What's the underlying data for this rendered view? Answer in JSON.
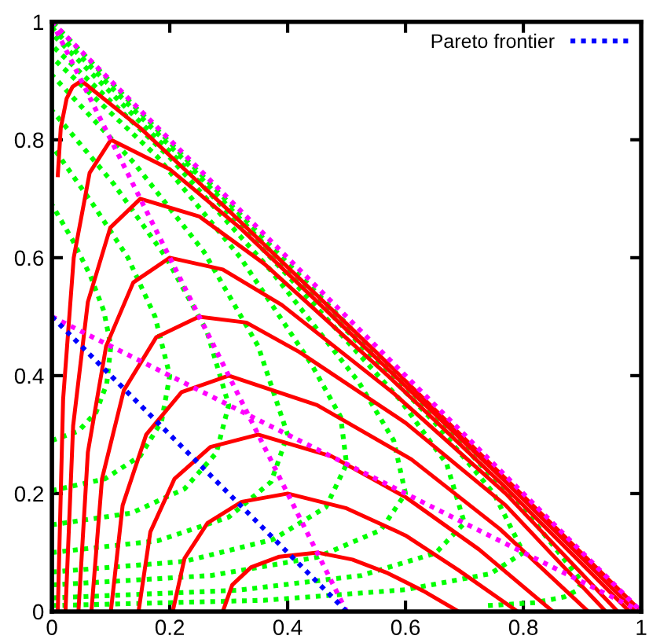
{
  "chart_data": {
    "type": "line",
    "xlim": [
      0,
      1
    ],
    "ylim": [
      0,
      1
    ],
    "xticks": [
      0,
      0.2,
      0.4,
      0.6,
      0.8,
      1
    ],
    "yticks": [
      0,
      0.2,
      0.4,
      0.6,
      0.8,
      1
    ],
    "grid": false,
    "legend": "top right",
    "marker": "none",
    "series": [
      {
        "color": "#00ff00",
        "line_style": "dotted",
        "x": [
          0.74,
          0.82,
          0.87,
          0.89,
          0.9,
          0.82,
          0.68,
          0.44,
          0.225,
          0
        ],
        "values": [
          0.01,
          0.015,
          0.025,
          0.035,
          0.05,
          0.15,
          0.3,
          0.55,
          0.77,
          1.0
        ]
      },
      {
        "color": "#00ff00",
        "line_style": "dotted",
        "x": [
          0,
          0.36,
          0.6,
          0.744,
          0.8,
          0.75,
          0.65,
          0.43,
          0.22,
          0
        ],
        "values": [
          0.01,
          0.019,
          0.037,
          0.064,
          0.1,
          0.2,
          0.32,
          0.55,
          0.77,
          0.99
        ]
      },
      {
        "color": "#00ff00",
        "line_style": "dotted",
        "x": [
          0,
          0.315,
          0.525,
          0.651,
          0.7,
          0.67,
          0.59,
          0.4,
          0.21,
          0
        ],
        "values": [
          0.023,
          0.036,
          0.061,
          0.099,
          0.15,
          0.25,
          0.36,
          0.57,
          0.77,
          0.98
        ]
      },
      {
        "color": "#00ff00",
        "line_style": "dotted",
        "x": [
          0,
          0.27,
          0.45,
          0.558,
          0.6,
          0.58,
          0.52,
          0.37,
          0.2,
          0
        ],
        "values": [
          0.045,
          0.061,
          0.092,
          0.138,
          0.2,
          0.29,
          0.39,
          0.58,
          0.77,
          0.96
        ]
      },
      {
        "color": "#00ff00",
        "line_style": "dotted",
        "x": [
          0,
          0.225,
          0.375,
          0.465,
          0.5,
          0.49,
          0.44,
          0.32,
          0.18,
          0
        ],
        "values": [
          0.067,
          0.085,
          0.122,
          0.177,
          0.25,
          0.33,
          0.42,
          0.6,
          0.77,
          0.94
        ]
      },
      {
        "color": "#00ff00",
        "line_style": "dotted",
        "x": [
          0,
          0.18,
          0.3,
          0.372,
          0.4,
          0.35,
          0.258,
          0.14,
          0
        ],
        "values": [
          0.1,
          0.12,
          0.16,
          0.22,
          0.3,
          0.45,
          0.61,
          0.76,
          0.91
        ]
      },
      {
        "color": "#00ff00",
        "line_style": "dotted",
        "x": [
          0,
          0.135,
          0.225,
          0.279,
          0.3,
          0.263,
          0.194,
          0.105,
          0
        ],
        "values": [
          0.147,
          0.167,
          0.208,
          0.269,
          0.35,
          0.475,
          0.6,
          0.725,
          0.85
        ]
      },
      {
        "color": "#00ff00",
        "line_style": "dotted",
        "x": [
          0,
          0.09,
          0.15,
          0.186,
          0.2,
          0.175,
          0.129,
          0.07,
          0
        ],
        "values": [
          0.205,
          0.225,
          0.264,
          0.322,
          0.4,
          0.5,
          0.6,
          0.69,
          0.79
        ]
      },
      {
        "color": "#00ff00",
        "line_style": "dotted",
        "x": [
          0,
          0.045,
          0.075,
          0.093,
          0.1,
          0.088,
          0.065,
          0.035,
          0
        ],
        "values": [
          0.29,
          0.306,
          0.338,
          0.386,
          0.45,
          0.51,
          0.57,
          0.63,
          0.69
        ]
      },
      {
        "color": "#ff0000",
        "line_style": "solid",
        "x": [
          0.01,
          0.015,
          0.025,
          0.035,
          0.05,
          0.15,
          0.3,
          0.55,
          0.77,
          1.0
        ],
        "values": [
          0.74,
          0.82,
          0.87,
          0.89,
          0.9,
          0.82,
          0.68,
          0.44,
          0.225,
          0
        ]
      },
      {
        "color": "#ff0000",
        "line_style": "solid",
        "x": [
          0.01,
          0.019,
          0.037,
          0.064,
          0.1,
          0.2,
          0.32,
          0.55,
          0.77,
          0.99
        ],
        "values": [
          0,
          0.36,
          0.6,
          0.744,
          0.8,
          0.75,
          0.65,
          0.43,
          0.22,
          0
        ]
      },
      {
        "color": "#ff0000",
        "line_style": "solid",
        "x": [
          0.023,
          0.036,
          0.061,
          0.099,
          0.15,
          0.25,
          0.36,
          0.57,
          0.77,
          0.98
        ],
        "values": [
          0,
          0.315,
          0.525,
          0.651,
          0.7,
          0.67,
          0.59,
          0.4,
          0.21,
          0
        ]
      },
      {
        "color": "#ff0000",
        "line_style": "solid",
        "x": [
          0.045,
          0.061,
          0.092,
          0.138,
          0.2,
          0.29,
          0.39,
          0.58,
          0.77,
          0.96
        ],
        "values": [
          0,
          0.27,
          0.45,
          0.558,
          0.6,
          0.58,
          0.52,
          0.37,
          0.2,
          0
        ]
      },
      {
        "color": "#ff0000",
        "line_style": "solid",
        "x": [
          0.067,
          0.085,
          0.122,
          0.177,
          0.25,
          0.33,
          0.42,
          0.6,
          0.77,
          0.94
        ],
        "values": [
          0,
          0.225,
          0.375,
          0.465,
          0.5,
          0.49,
          0.44,
          0.32,
          0.18,
          0
        ]
      },
      {
        "color": "#ff0000",
        "line_style": "solid",
        "x": [
          0.1,
          0.12,
          0.16,
          0.22,
          0.3,
          0.45,
          0.61,
          0.76,
          0.91
        ],
        "values": [
          0,
          0.18,
          0.3,
          0.372,
          0.4,
          0.35,
          0.258,
          0.14,
          0
        ]
      },
      {
        "color": "#ff0000",
        "line_style": "solid",
        "x": [
          0.147,
          0.167,
          0.208,
          0.269,
          0.35,
          0.475,
          0.6,
          0.725,
          0.85
        ],
        "values": [
          0,
          0.135,
          0.225,
          0.279,
          0.3,
          0.263,
          0.194,
          0.105,
          0
        ]
      },
      {
        "color": "#ff0000",
        "line_style": "solid",
        "x": [
          0.205,
          0.225,
          0.264,
          0.322,
          0.4,
          0.5,
          0.6,
          0.69,
          0.79
        ],
        "values": [
          0,
          0.09,
          0.15,
          0.186,
          0.2,
          0.175,
          0.129,
          0.07,
          0
        ]
      },
      {
        "color": "#ff0000",
        "line_style": "solid",
        "x": [
          0.29,
          0.306,
          0.338,
          0.386,
          0.45,
          0.51,
          0.57,
          0.63,
          0.69
        ],
        "values": [
          0,
          0.045,
          0.075,
          0.093,
          0.1,
          0.088,
          0.065,
          0.035,
          0
        ]
      },
      {
        "color": "#ff00ff",
        "line_style": "dotted",
        "x": [
          0,
          0.5
        ],
        "values": [
          1,
          0
        ]
      },
      {
        "color": "#ff00ff",
        "line_style": "dotted",
        "x": [
          0,
          1
        ],
        "values": [
          0.5,
          0
        ]
      },
      {
        "color": "#ff00ff",
        "line_style": "dotted",
        "x": [
          0,
          1
        ],
        "values": [
          1,
          0
        ]
      },
      {
        "name": "Pareto frontier",
        "color": "#0000ff",
        "line_style": "dotted",
        "x": [
          0,
          0.5
        ],
        "values": [
          0.5,
          0
        ]
      }
    ]
  }
}
